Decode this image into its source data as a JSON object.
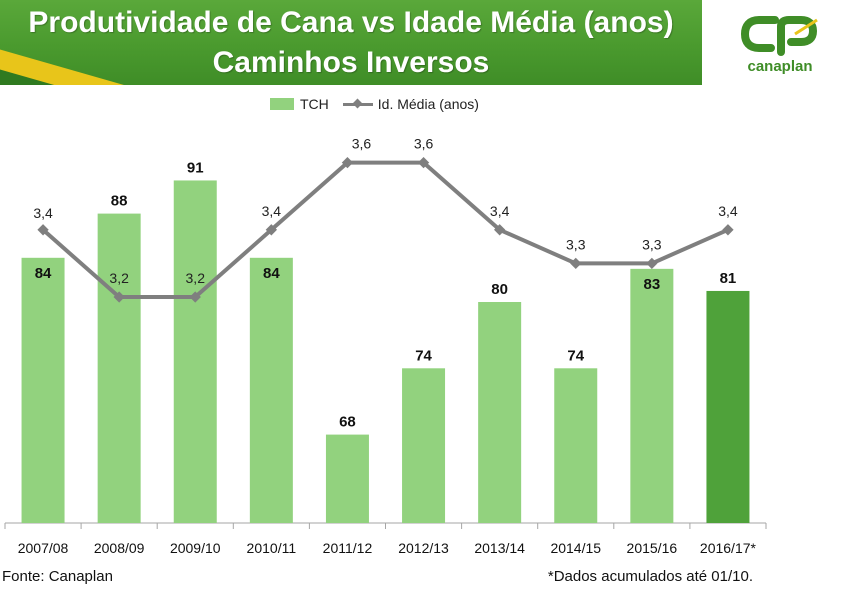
{
  "header": {
    "title_line1": "Produtividade de Cana vs Idade Média (anos)",
    "title_line2": "Caminhos Inversos"
  },
  "logo": {
    "text": "canaplan"
  },
  "footer": {
    "source": "Fonte: Canaplan",
    "note": "*Dados acumulados até 01/10."
  },
  "colors": {
    "bar": "#92d27e",
    "bar_highlight": "#4fa23a",
    "line": "#7f7f7f",
    "brand_green": "#3f8d27",
    "accent_yellow": "#e8c51a"
  },
  "chart_data": {
    "type": "bar",
    "categories": [
      "2007/08",
      "2008/09",
      "2009/10",
      "2010/11",
      "2011/12",
      "2012/13",
      "2013/14",
      "2014/15",
      "2015/16",
      "2016/17*"
    ],
    "series": [
      {
        "name": "TCH",
        "type": "bar",
        "values": [
          84,
          88,
          91,
          84,
          68,
          74,
          80,
          74,
          83,
          81
        ],
        "labels": [
          "84",
          "88",
          "91",
          "84",
          "68",
          "74",
          "80",
          "74",
          "83",
          "81"
        ]
      },
      {
        "name": "Id. Média (anos)",
        "type": "line",
        "values": [
          3.4,
          3.2,
          3.2,
          3.4,
          3.6,
          3.6,
          3.4,
          3.3,
          3.3,
          3.4
        ],
        "labels": [
          "3,4",
          "3,2",
          "3,2",
          "3,4",
          "3,6",
          "3,6",
          "3,4",
          "3,3",
          "3,3",
          "3,4"
        ]
      }
    ],
    "highlight_index": 9,
    "legend_position": "top",
    "grid": false
  }
}
